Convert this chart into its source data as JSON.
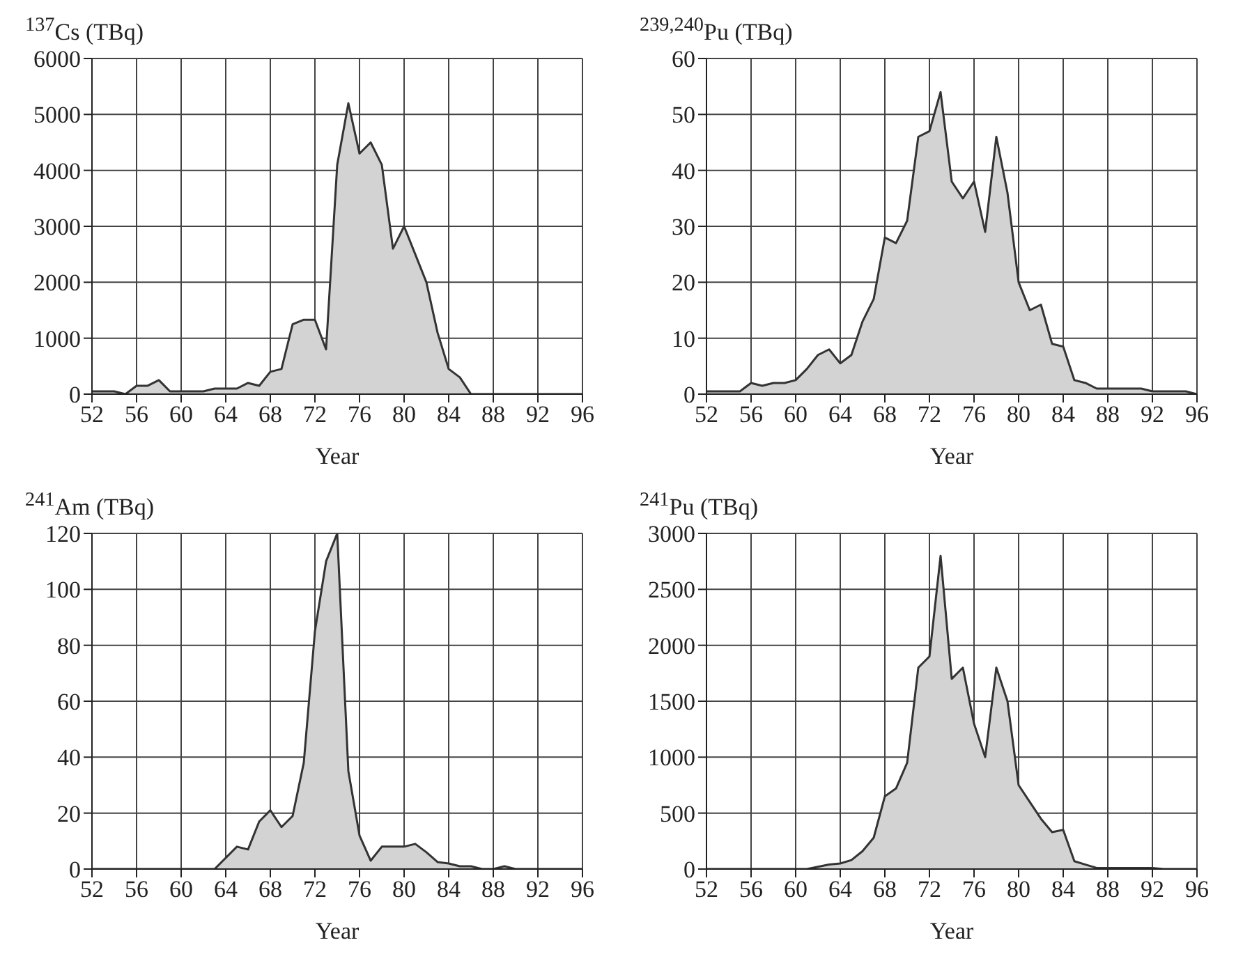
{
  "chart_data": [
    {
      "type": "area",
      "title": "$^{137}$Cs (TBq)",
      "xlabel": "Year",
      "xlim": [
        52,
        96
      ],
      "xticks": [
        52,
        56,
        60,
        64,
        68,
        72,
        76,
        80,
        84,
        88,
        92,
        96
      ],
      "ylim": [
        0,
        6000
      ],
      "yticks": [
        0,
        1000,
        2000,
        3000,
        4000,
        5000,
        6000
      ],
      "grid": true,
      "x": [
        52,
        53,
        54,
        55,
        56,
        57,
        58,
        59,
        60,
        61,
        62,
        63,
        64,
        65,
        66,
        67,
        68,
        69,
        70,
        71,
        72,
        73,
        74,
        75,
        76,
        77,
        78,
        79,
        80,
        81,
        82,
        83,
        84,
        85,
        86,
        87,
        88,
        89,
        90,
        91,
        92,
        93,
        94,
        95,
        96
      ],
      "series": [
        {
          "color": "#d3d3d3",
          "values": [
            50,
            50,
            50,
            0,
            150,
            150,
            250,
            50,
            50,
            50,
            50,
            100,
            100,
            100,
            200,
            150,
            400,
            450,
            1250,
            1330,
            1330,
            800,
            4100,
            5200,
            4300,
            4500,
            4100,
            2600,
            3000,
            2500,
            2000,
            1100,
            450,
            300,
            0,
            0,
            0,
            0,
            0,
            0,
            0,
            0,
            0,
            0,
            0
          ]
        }
      ]
    },
    {
      "type": "area",
      "title": "$^{239,240}$Pu (TBq)",
      "xlabel": "Year",
      "xlim": [
        52,
        96
      ],
      "xticks": [
        52,
        56,
        60,
        64,
        68,
        72,
        76,
        80,
        84,
        88,
        92,
        96
      ],
      "ylim": [
        0,
        60
      ],
      "yticks": [
        0,
        10,
        20,
        30,
        40,
        50,
        60
      ],
      "grid": true,
      "x": [
        52,
        53,
        54,
        55,
        56,
        57,
        58,
        59,
        60,
        61,
        62,
        63,
        64,
        65,
        66,
        67,
        68,
        69,
        70,
        71,
        72,
        73,
        74,
        75,
        76,
        77,
        78,
        79,
        80,
        81,
        82,
        83,
        84,
        85,
        86,
        87,
        88,
        89,
        90,
        91,
        92,
        93,
        94,
        95,
        96
      ],
      "series": [
        {
          "color": "#d3d3d3",
          "values": [
            0.5,
            0.5,
            0.5,
            0.5,
            2,
            1.5,
            2,
            2,
            2.5,
            4.5,
            7,
            8,
            5.5,
            7,
            13,
            17,
            28,
            27,
            31,
            46,
            47,
            54,
            38,
            35,
            38,
            29,
            46,
            36,
            20,
            15,
            16,
            9,
            8.5,
            2.5,
            2,
            1,
            1,
            1,
            1,
            1,
            0.5,
            0.5,
            0.5,
            0.5,
            0
          ]
        }
      ]
    },
    {
      "type": "area",
      "title": "$^{241}$Am (TBq)",
      "xlabel": "Year",
      "xlim": [
        52,
        96
      ],
      "xticks": [
        52,
        56,
        60,
        64,
        68,
        72,
        76,
        80,
        84,
        88,
        92,
        96
      ],
      "ylim": [
        0,
        120
      ],
      "yticks": [
        0,
        20,
        40,
        60,
        80,
        100,
        120
      ],
      "grid": true,
      "x": [
        52,
        53,
        54,
        55,
        56,
        57,
        58,
        59,
        60,
        61,
        62,
        63,
        64,
        65,
        66,
        67,
        68,
        69,
        70,
        71,
        72,
        73,
        74,
        75,
        76,
        77,
        78,
        79,
        80,
        81,
        82,
        83,
        84,
        85,
        86,
        87,
        88,
        89,
        90,
        91,
        92,
        93,
        94,
        95,
        96
      ],
      "series": [
        {
          "color": "#d3d3d3",
          "values": [
            0,
            0,
            0,
            0,
            0,
            0,
            0,
            0,
            0,
            0,
            0,
            0,
            4,
            8,
            7,
            17,
            21,
            15,
            19,
            38,
            85,
            110,
            120,
            35,
            12,
            3,
            8,
            8,
            8,
            9,
            6,
            2.5,
            2,
            1,
            1,
            0,
            0,
            1,
            0,
            0,
            0,
            0,
            0,
            0,
            0
          ]
        }
      ]
    },
    {
      "type": "area",
      "title": "$^{241}$Pu (TBq)",
      "xlabel": "Year",
      "xlim": [
        52,
        96
      ],
      "xticks": [
        52,
        56,
        60,
        64,
        68,
        72,
        76,
        80,
        84,
        88,
        92,
        96
      ],
      "ylim": [
        0,
        3000
      ],
      "yticks": [
        0,
        500,
        1000,
        1500,
        2000,
        2500,
        3000
      ],
      "grid": true,
      "x": [
        52,
        53,
        54,
        55,
        56,
        57,
        58,
        59,
        60,
        61,
        62,
        63,
        64,
        65,
        66,
        67,
        68,
        69,
        70,
        71,
        72,
        73,
        74,
        75,
        76,
        77,
        78,
        79,
        80,
        81,
        82,
        83,
        84,
        85,
        86,
        87,
        88,
        89,
        90,
        91,
        92,
        93,
        94,
        95,
        96
      ],
      "series": [
        {
          "color": "#d3d3d3",
          "values": [
            0,
            0,
            0,
            0,
            0,
            0,
            0,
            0,
            0,
            0,
            20,
            40,
            50,
            80,
            160,
            280,
            650,
            720,
            950,
            1800,
            1900,
            2800,
            1700,
            1800,
            1300,
            1000,
            1800,
            1500,
            750,
            600,
            450,
            330,
            350,
            70,
            40,
            10,
            10,
            10,
            10,
            10,
            10,
            0,
            0,
            0,
            0
          ]
        }
      ]
    }
  ]
}
